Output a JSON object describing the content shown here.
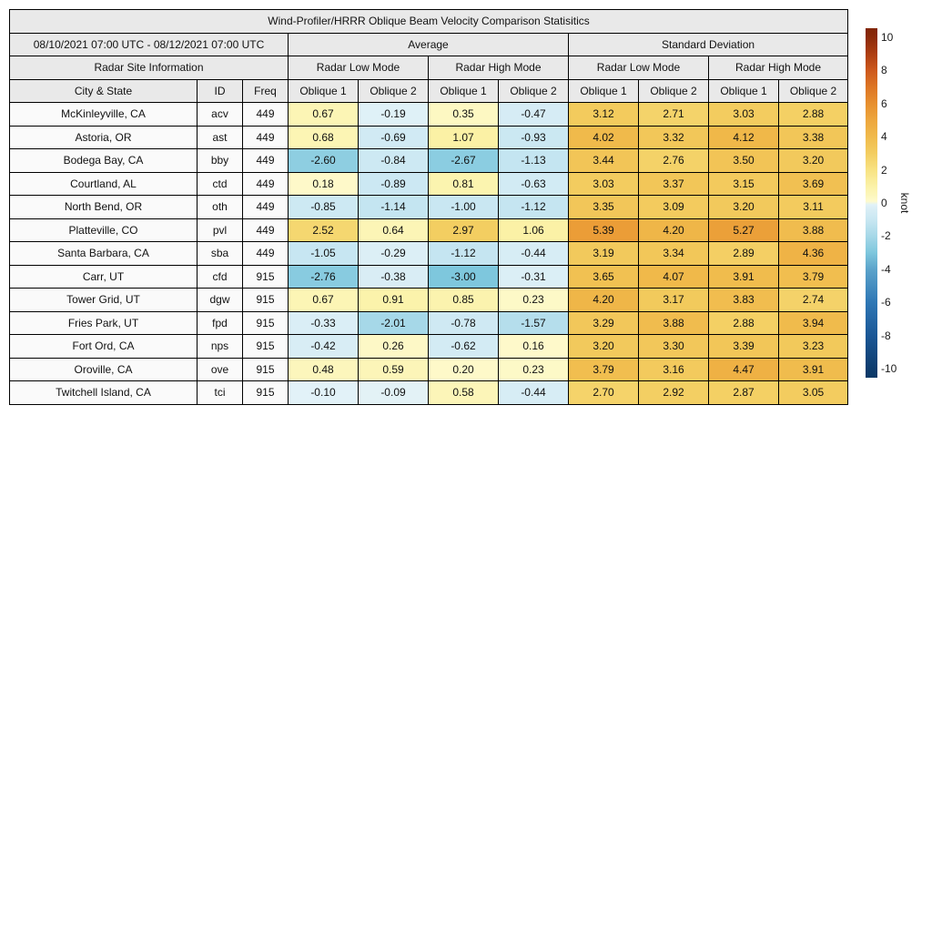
{
  "table": {
    "date_range": "08/10/2021 07:00 UTC - 08/12/2021 07:00 UTC",
    "group_average": "Average",
    "group_std": "Standard Deviation",
    "site_info": "Radar Site Information",
    "mode_low": "Radar Low Mode",
    "mode_high": "Radar High Mode",
    "col_city": "City & State",
    "col_id": "ID",
    "col_freq": "Freq",
    "col_oblique1": "Oblique 1",
    "col_oblique2": "Oblique 2"
  },
  "chart_data": {
    "type": "heatmap",
    "title": "Wind-Profiler/HRRR Oblique Beam Velocity Comparison Statisitics",
    "value_column_order": [
      "avg_low_oblique1",
      "avg_low_oblique2",
      "avg_high_oblique1",
      "avg_high_oblique2",
      "std_low_oblique1",
      "std_low_oblique2",
      "std_high_oblique1",
      "std_high_oblique2"
    ],
    "rows": [
      {
        "city": "McKinleyville, CA",
        "id": "acv",
        "freq": "449",
        "values": [
          0.67,
          -0.19,
          0.35,
          -0.47,
          3.12,
          2.71,
          3.03,
          2.88
        ]
      },
      {
        "city": "Astoria, OR",
        "id": "ast",
        "freq": "449",
        "values": [
          0.68,
          -0.69,
          1.07,
          -0.93,
          4.02,
          3.32,
          4.12,
          3.38
        ]
      },
      {
        "city": "Bodega Bay, CA",
        "id": "bby",
        "freq": "449",
        "values": [
          -2.6,
          -0.84,
          -2.67,
          -1.13,
          3.44,
          2.76,
          3.5,
          3.2
        ]
      },
      {
        "city": "Courtland, AL",
        "id": "ctd",
        "freq": "449",
        "values": [
          0.18,
          -0.89,
          0.81,
          -0.63,
          3.03,
          3.37,
          3.15,
          3.69
        ]
      },
      {
        "city": "North Bend, OR",
        "id": "oth",
        "freq": "449",
        "values": [
          -0.85,
          -1.14,
          -1.0,
          -1.12,
          3.35,
          3.09,
          3.2,
          3.11
        ]
      },
      {
        "city": "Platteville, CO",
        "id": "pvl",
        "freq": "449",
        "values": [
          2.52,
          0.64,
          2.97,
          1.06,
          5.39,
          4.2,
          5.27,
          3.88
        ]
      },
      {
        "city": "Santa Barbara, CA",
        "id": "sba",
        "freq": "449",
        "values": [
          -1.05,
          -0.29,
          -1.12,
          -0.44,
          3.19,
          3.34,
          2.89,
          4.36
        ]
      },
      {
        "city": "Carr, UT",
        "id": "cfd",
        "freq": "915",
        "values": [
          -2.76,
          -0.38,
          -3.0,
          -0.31,
          3.65,
          4.07,
          3.91,
          3.79
        ]
      },
      {
        "city": "Tower Grid, UT",
        "id": "dgw",
        "freq": "915",
        "values": [
          0.67,
          0.91,
          0.85,
          0.23,
          4.2,
          3.17,
          3.83,
          2.74
        ]
      },
      {
        "city": "Fries Park, UT",
        "id": "fpd",
        "freq": "915",
        "values": [
          -0.33,
          -2.01,
          -0.78,
          -1.57,
          3.29,
          3.88,
          2.88,
          3.94
        ]
      },
      {
        "city": "Fort Ord, CA",
        "id": "nps",
        "freq": "915",
        "values": [
          -0.42,
          0.26,
          -0.62,
          0.16,
          3.2,
          3.3,
          3.39,
          3.23
        ]
      },
      {
        "city": "Oroville, CA",
        "id": "ove",
        "freq": "915",
        "values": [
          0.48,
          0.59,
          0.2,
          0.23,
          3.79,
          3.16,
          4.47,
          3.91
        ]
      },
      {
        "city": "Twitchell Island, CA",
        "id": "tci",
        "freq": "915",
        "values": [
          -0.1,
          -0.09,
          0.58,
          -0.44,
          2.7,
          2.92,
          2.87,
          3.05
        ]
      }
    ],
    "colorbar": {
      "label": "knot",
      "min": -10,
      "max": 10,
      "ticks": [
        10,
        8,
        6,
        4,
        2,
        0,
        -2,
        -4,
        -6,
        -8,
        -10
      ]
    },
    "colormap_stops": [
      [
        -10.55,
        "#0a3866"
      ],
      [
        -10,
        "#0d3c6e"
      ],
      [
        -8,
        "#1a5796"
      ],
      [
        -6,
        "#2e77b5"
      ],
      [
        -4,
        "#5ba3cb"
      ],
      [
        -3,
        "#7ec7dd"
      ],
      [
        -2,
        "#a6d8e8"
      ],
      [
        -1,
        "#c9e7f2"
      ],
      [
        -0.4,
        "#d8edf5"
      ],
      [
        -0.1,
        "#e2f2f8"
      ],
      [
        0.1,
        "#fefacd"
      ],
      [
        0.5,
        "#fcf6bb"
      ],
      [
        1,
        "#fbf2a8"
      ],
      [
        2,
        "#f8e282"
      ],
      [
        3,
        "#f3cd60"
      ],
      [
        4,
        "#f0ba4b"
      ],
      [
        5,
        "#eda63d"
      ],
      [
        6,
        "#e78f2e"
      ],
      [
        7,
        "#dd7524"
      ],
      [
        8,
        "#cd581c"
      ],
      [
        9,
        "#ad3d10"
      ],
      [
        10,
        "#8c2a0a"
      ],
      [
        10.55,
        "#812506"
      ]
    ]
  },
  "colors": {
    "header_bg": "#e9e9e9",
    "label_cell_bg": "#fafafa",
    "border": "#000000",
    "background": "#ffffff"
  }
}
